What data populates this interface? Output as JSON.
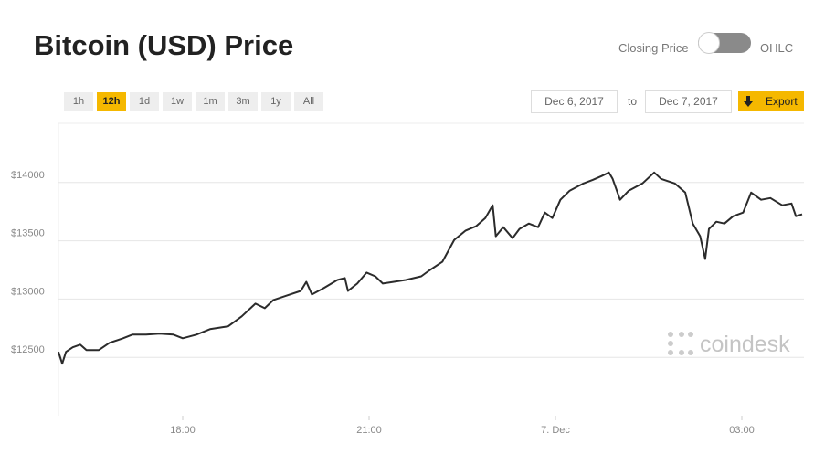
{
  "header": {
    "title": "Bitcoin (USD) Price",
    "toggle_left": "Closing Price",
    "toggle_right": "OHLC"
  },
  "controls": {
    "range_buttons": [
      "1h",
      "12h",
      "1d",
      "1w",
      "1m",
      "3m",
      "1y",
      "All"
    ],
    "selected_range": "12h",
    "date_from": "Dec 6, 2017",
    "date_sep": "to",
    "date_to": "Dec 7, 2017",
    "export": "Export"
  },
  "watermark": "coindesk",
  "chart_data": {
    "type": "line",
    "x": [
      16.0,
      16.06,
      16.12,
      16.23,
      16.35,
      16.45,
      16.65,
      16.82,
      17.04,
      17.19,
      17.41,
      17.63,
      17.85,
      18.0,
      18.22,
      18.44,
      18.73,
      18.95,
      19.17,
      19.32,
      19.46,
      19.68,
      19.9,
      19.99,
      20.08,
      20.27,
      20.49,
      20.61,
      20.66,
      20.81,
      20.96,
      21.1,
      21.22,
      21.4,
      21.59,
      21.84,
      21.96,
      22.18,
      22.37,
      22.55,
      22.72,
      22.87,
      22.99,
      23.04,
      23.16,
      23.31,
      23.42,
      23.57,
      23.72,
      23.83,
      23.95,
      24.08,
      24.23,
      24.45,
      24.6,
      24.74,
      24.86,
      24.92,
      25.04,
      25.18,
      25.4,
      25.59,
      25.7,
      25.92,
      26.09,
      26.21,
      26.33,
      26.41,
      26.47,
      26.59,
      26.72,
      26.86,
      27.02,
      27.15,
      27.31,
      27.46,
      27.65,
      27.8,
      27.87,
      27.97
    ],
    "series": [
      {
        "name": "Closing Price",
        "color": "#2b2b2b",
        "values": [
          12547,
          12445,
          12547,
          12586,
          12609,
          12563,
          12563,
          12625,
          12664,
          12695,
          12695,
          12703,
          12695,
          12664,
          12695,
          12742,
          12766,
          12852,
          12961,
          12922,
          12992,
          13031,
          13070,
          13148,
          13039,
          13094,
          13164,
          13180,
          13070,
          13133,
          13227,
          13195,
          13133,
          13148,
          13164,
          13195,
          13242,
          13320,
          13508,
          13586,
          13625,
          13695,
          13805,
          13539,
          13617,
          13523,
          13602,
          13648,
          13617,
          13742,
          13695,
          13852,
          13930,
          13992,
          14023,
          14055,
          14086,
          14031,
          13852,
          13930,
          13992,
          14086,
          14031,
          13992,
          13914,
          13648,
          13539,
          13344,
          13602,
          13664,
          13648,
          13711,
          13742,
          13914,
          13852,
          13867,
          13805,
          13820,
          13711,
          13727
        ]
      }
    ],
    "xlim": [
      16,
      28
    ],
    "xticks": [
      {
        "value": 18,
        "label": "18:00"
      },
      {
        "value": 21,
        "label": "21:00"
      },
      {
        "value": 24,
        "label": "7. Dec"
      },
      {
        "value": 27,
        "label": "03:00"
      }
    ],
    "ylim": [
      12000,
      14500
    ],
    "yticks": [
      {
        "value": 12500,
        "label": "$12500"
      },
      {
        "value": 13000,
        "label": "$13000"
      },
      {
        "value": 13500,
        "label": "$13500"
      },
      {
        "value": 14000,
        "label": "$14000"
      }
    ],
    "grid": true
  }
}
